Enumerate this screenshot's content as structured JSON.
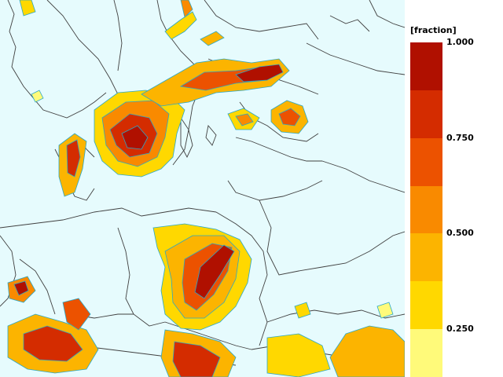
{
  "legend": {
    "unit_label": "[fraction]",
    "tick_labels": [
      "1.000",
      "0.750",
      "0.500",
      "0.250"
    ],
    "tick_values": [
      1.0,
      0.75,
      0.5,
      0.25
    ],
    "range": [
      0.125,
      1.0
    ],
    "bins": [
      {
        "from": 0.875,
        "to": 1.0,
        "color": "#b01000"
      },
      {
        "from": 0.75,
        "to": 0.875,
        "color": "#d42c00"
      },
      {
        "from": 0.625,
        "to": 0.75,
        "color": "#ec5200"
      },
      {
        "from": 0.5,
        "to": 0.625,
        "color": "#f98a00"
      },
      {
        "from": 0.375,
        "to": 0.5,
        "color": "#fcb400"
      },
      {
        "from": 0.25,
        "to": 0.375,
        "color": "#ffd800"
      },
      {
        "from": 0.125,
        "to": 0.25,
        "color": "#fffa7a"
      }
    ]
  },
  "colors": {
    "background": "#e6fbfd",
    "contour_outline": "#2aa8c8",
    "borders": "#404040"
  }
}
